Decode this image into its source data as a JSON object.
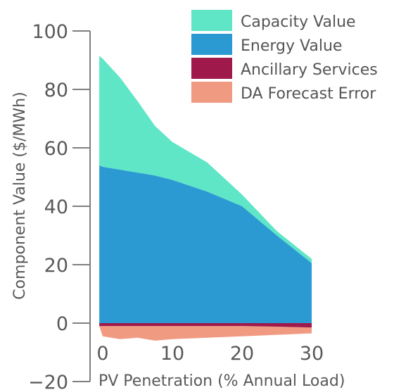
{
  "chart_data": {
    "type": "area",
    "title": "",
    "xlabel": "PV Penetration (% Annual Load)",
    "ylabel": "Component Value ($/MWh)",
    "xlim": [
      -0.5,
      30
    ],
    "ylim": [
      -20,
      100
    ],
    "x_ticks": [
      "0",
      "10",
      "20",
      "30"
    ],
    "y_ticks": [
      "−20",
      "0",
      "20",
      "40",
      "60",
      "80",
      "100"
    ],
    "grid": false,
    "legend_position": "top-right",
    "series": [
      {
        "name": "Capacity Value",
        "color": "#5fe6c6",
        "x": [
          -0.5,
          0,
          2.5,
          5,
          7.5,
          10,
          15,
          20,
          25,
          30
        ],
        "values": [
          37.5,
          37,
          31.5,
          24.5,
          17,
          13,
          10,
          4,
          1.5,
          1.5
        ]
      },
      {
        "name": "Energy Value",
        "color": "#2b9ad3",
        "x": [
          -0.5,
          0,
          2.5,
          5,
          7.5,
          10,
          15,
          20,
          25,
          30
        ],
        "values": [
          54,
          53.5,
          52.5,
          51.5,
          50.5,
          49,
          45,
          40,
          30,
          20.5
        ]
      },
      {
        "name": "Ancillary Services",
        "color": "#a0194b",
        "x": [
          -0.5,
          0,
          5,
          10,
          15,
          20,
          25,
          30
        ],
        "values": [
          -1,
          -1,
          -1,
          -1,
          -1,
          -1,
          -1.2,
          -1.5
        ]
      },
      {
        "name": "DA Forecast Error",
        "color": "#f19a82",
        "x": [
          -0.5,
          0,
          2.5,
          5,
          7.5,
          10,
          15,
          20,
          25,
          30
        ],
        "values": [
          -1,
          -4.5,
          -5.5,
          -5,
          -6,
          -5.5,
          -5,
          -4.5,
          -4,
          -3.5
        ]
      }
    ]
  }
}
